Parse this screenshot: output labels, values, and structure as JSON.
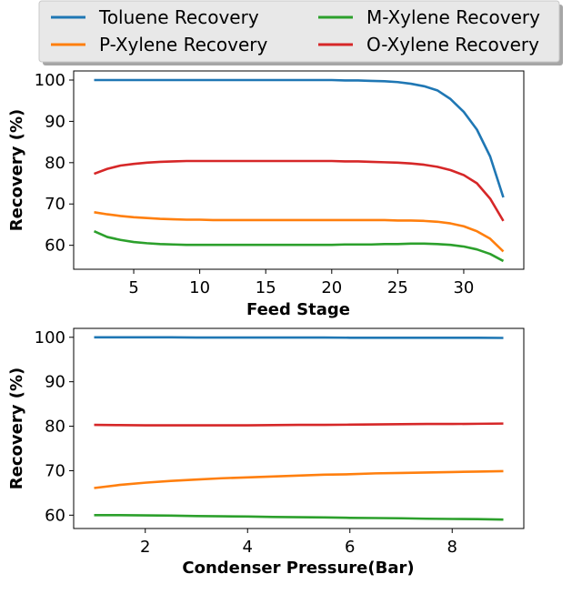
{
  "legend": {
    "placement": "top",
    "entries": [
      {
        "label": "Toluene Recovery",
        "color": "#1f77b4"
      },
      {
        "label": "P-Xylene Recovery",
        "color": "#ff7f0e"
      },
      {
        "label": "M-Xylene Recovery",
        "color": "#2ca02c"
      },
      {
        "label": "O-Xylene Recovery",
        "color": "#d62728"
      }
    ]
  },
  "chart_data": [
    {
      "type": "line",
      "title": "",
      "xlabel": "Feed Stage",
      "ylabel": "Recovery (%)",
      "xlim": [
        0.45,
        34.55
      ],
      "ylim": [
        54.2,
        102.2
      ],
      "xticks": [
        5,
        10,
        15,
        20,
        25,
        30
      ],
      "yticks": [
        60,
        70,
        80,
        90,
        100
      ],
      "grid": false,
      "x": [
        2,
        3,
        4,
        5,
        6,
        7,
        8,
        9,
        10,
        11,
        12,
        13,
        14,
        15,
        16,
        17,
        18,
        19,
        20,
        21,
        22,
        23,
        24,
        25,
        26,
        27,
        28,
        29,
        30,
        31,
        32,
        33
      ],
      "series": [
        {
          "name": "Toluene Recovery",
          "color": "#1f77b4",
          "values": [
            100,
            100,
            100,
            100,
            100,
            100,
            100,
            100,
            100,
            100,
            100,
            100,
            100,
            100,
            100,
            100,
            100,
            100,
            100,
            99.9,
            99.9,
            99.8,
            99.7,
            99.5,
            99.1,
            98.5,
            97.5,
            95.4,
            92.3,
            88.0,
            81.5,
            71.6
          ]
        },
        {
          "name": "P-Xylene Recovery",
          "color": "#ff7f0e",
          "values": [
            68.0,
            67.5,
            67.1,
            66.8,
            66.6,
            66.4,
            66.3,
            66.2,
            66.2,
            66.1,
            66.1,
            66.1,
            66.1,
            66.1,
            66.1,
            66.1,
            66.1,
            66.1,
            66.1,
            66.1,
            66.1,
            66.1,
            66.1,
            66.0,
            66.0,
            65.9,
            65.7,
            65.3,
            64.6,
            63.4,
            61.6,
            58.5
          ]
        },
        {
          "name": "M-Xylene Recovery",
          "color": "#2ca02c",
          "values": [
            63.4,
            62.0,
            61.3,
            60.8,
            60.5,
            60.3,
            60.2,
            60.1,
            60.1,
            60.1,
            60.1,
            60.1,
            60.1,
            60.1,
            60.1,
            60.1,
            60.1,
            60.1,
            60.1,
            60.2,
            60.2,
            60.2,
            60.3,
            60.3,
            60.4,
            60.4,
            60.3,
            60.1,
            59.7,
            59.0,
            57.9,
            56.2
          ]
        },
        {
          "name": "O-Xylene Recovery",
          "color": "#d62728",
          "values": [
            77.3,
            78.5,
            79.3,
            79.7,
            80.0,
            80.2,
            80.3,
            80.4,
            80.4,
            80.4,
            80.4,
            80.4,
            80.4,
            80.4,
            80.4,
            80.4,
            80.4,
            80.4,
            80.4,
            80.3,
            80.3,
            80.2,
            80.1,
            80.0,
            79.8,
            79.5,
            79.0,
            78.2,
            77.0,
            75.0,
            71.3,
            65.9
          ]
        }
      ]
    },
    {
      "type": "line",
      "title": "",
      "xlabel": "Condenser Pressure(Bar)",
      "ylabel": "Recovery (%)",
      "xlim": [
        0.6,
        9.4
      ],
      "ylim": [
        57.0,
        102.0
      ],
      "xticks": [
        2,
        4,
        6,
        8
      ],
      "yticks": [
        60,
        70,
        80,
        90,
        100
      ],
      "grid": false,
      "x": [
        1,
        1.5,
        2,
        2.5,
        3,
        3.5,
        4,
        4.5,
        5,
        5.5,
        6,
        6.5,
        7,
        7.5,
        8,
        8.5,
        9
      ],
      "series": [
        {
          "name": "Toluene Recovery",
          "color": "#1f77b4",
          "values": [
            100.0,
            100.0,
            100.0,
            100.0,
            99.95,
            99.95,
            99.95,
            99.95,
            99.95,
            99.95,
            99.9,
            99.9,
            99.9,
            99.9,
            99.9,
            99.9,
            99.85
          ]
        },
        {
          "name": "P-Xylene Recovery",
          "color": "#ff7f0e",
          "values": [
            66.1,
            66.8,
            67.3,
            67.7,
            68.0,
            68.3,
            68.5,
            68.7,
            68.9,
            69.1,
            69.2,
            69.4,
            69.5,
            69.6,
            69.7,
            69.8,
            69.9
          ]
        },
        {
          "name": "M-Xylene Recovery",
          "color": "#2ca02c",
          "values": [
            60.0,
            60.0,
            59.95,
            59.9,
            59.8,
            59.75,
            59.7,
            59.6,
            59.55,
            59.5,
            59.4,
            59.35,
            59.3,
            59.2,
            59.15,
            59.1,
            59.0
          ]
        },
        {
          "name": "O-Xylene Recovery",
          "color": "#d62728",
          "values": [
            80.3,
            80.25,
            80.2,
            80.2,
            80.2,
            80.2,
            80.2,
            80.25,
            80.3,
            80.3,
            80.35,
            80.4,
            80.45,
            80.5,
            80.5,
            80.55,
            80.6
          ]
        }
      ]
    }
  ]
}
